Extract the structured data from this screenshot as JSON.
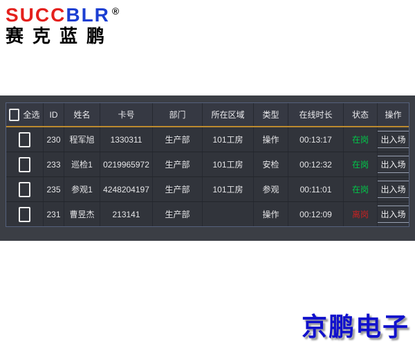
{
  "logo": {
    "brand_red": "SUCC",
    "brand_blue": "BLR",
    "registered_mark": "®",
    "brand_cn": "赛克蓝鹏"
  },
  "colors": {
    "band_background": "#3b3e45",
    "header_accent_line": "#bc8a2f",
    "status_on_duty": "#00c84a",
    "status_off_duty": "#c62222",
    "footer_brand_blue": "#1111cc",
    "logo_red": "#e4201c",
    "logo_blue": "#1b3ed2"
  },
  "table": {
    "columns": [
      {
        "key": "select",
        "label": "全选"
      },
      {
        "key": "id",
        "label": "ID"
      },
      {
        "key": "name",
        "label": "姓名"
      },
      {
        "key": "card",
        "label": "卡号"
      },
      {
        "key": "dept",
        "label": "部门"
      },
      {
        "key": "area",
        "label": "所在区域"
      },
      {
        "key": "type",
        "label": "类型"
      },
      {
        "key": "duration",
        "label": "在线时长"
      },
      {
        "key": "status",
        "label": "状态"
      },
      {
        "key": "action",
        "label": "操作"
      }
    ],
    "action_label": "出入场",
    "rows": [
      {
        "id": "230",
        "name": "程军旭",
        "card": "1330311",
        "dept": "生产部",
        "area": "101工房",
        "type": "操作",
        "duration": "00:13:17",
        "status": "在岗",
        "status_color": "#00c84a"
      },
      {
        "id": "233",
        "name": "巡检1",
        "card": "0219965972",
        "dept": "生产部",
        "area": "101工房",
        "type": "安检",
        "duration": "00:12:32",
        "status": "在岗",
        "status_color": "#00c84a"
      },
      {
        "id": "235",
        "name": "参观1",
        "card": "4248204197",
        "dept": "生产部",
        "area": "101工房",
        "type": "参观",
        "duration": "00:11:01",
        "status": "在岗",
        "status_color": "#00c84a"
      },
      {
        "id": "231",
        "name": "曹昱杰",
        "card": "213141",
        "dept": "生产部",
        "area": "",
        "type": "操作",
        "duration": "00:12:09",
        "status": "离岗",
        "status_color": "#c62222"
      }
    ]
  },
  "footer": {
    "brand": "京鹏电子"
  }
}
